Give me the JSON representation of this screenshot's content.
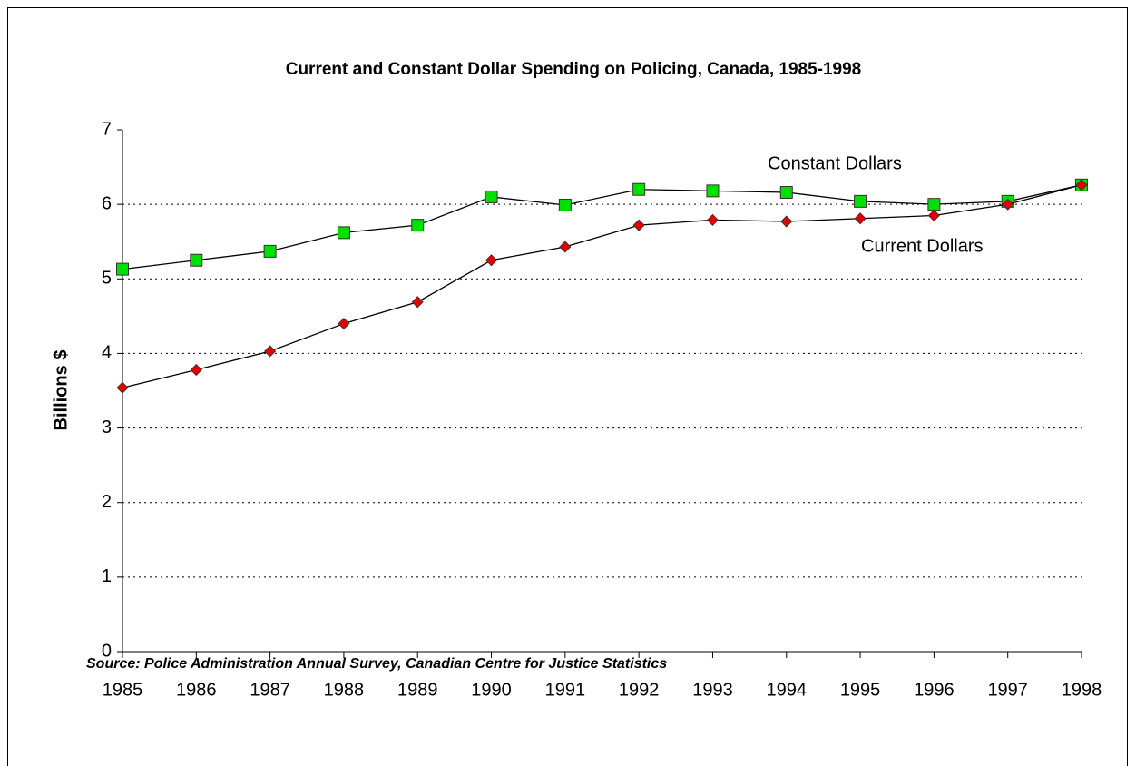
{
  "chart_data": {
    "type": "line",
    "title": "Current and Constant Dollar Spending on Policing, Canada, 1985-1998",
    "y_label": "Billions $",
    "source": "Source:  Police Administration Annual Survey, Canadian Centre for Justice Statistics",
    "categories": [
      "1985",
      "1986",
      "1987",
      "1988",
      "1989",
      "1990",
      "1991",
      "1992",
      "1993",
      "1994",
      "1995",
      "1996",
      "1997",
      "1998"
    ],
    "series": [
      {
        "name": "Constant Dollars",
        "color": "#00e000",
        "marker": "square",
        "values": [
          5.13,
          5.25,
          5.37,
          5.62,
          5.72,
          6.1,
          5.99,
          6.2,
          6.18,
          6.16,
          6.04,
          6.0,
          6.04,
          6.26
        ]
      },
      {
        "name": "Current Dollars",
        "color": "#e00000",
        "marker": "diamond",
        "values": [
          3.54,
          3.78,
          4.03,
          4.4,
          4.69,
          5.25,
          5.43,
          5.72,
          5.79,
          5.77,
          5.81,
          5.85,
          6.0,
          6.26
        ]
      }
    ],
    "ylim": [
      0,
      7
    ],
    "yticks": [
      0,
      1,
      2,
      3,
      4,
      5,
      6,
      7
    ],
    "grid": true
  }
}
